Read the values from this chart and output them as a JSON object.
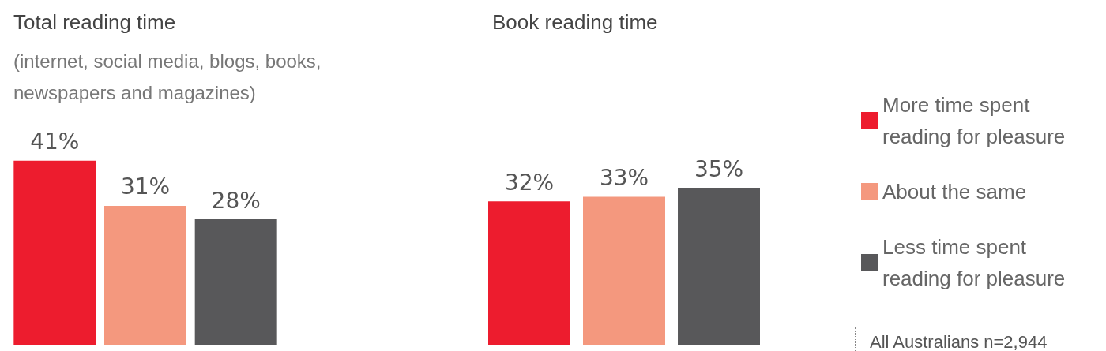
{
  "chart_data": [
    {
      "type": "bar",
      "title": "Total reading time",
      "subtitle": "(internet, social media, blogs, books, newspapers and magazines)",
      "categories": [
        null,
        null,
        null
      ],
      "values": [
        41,
        31,
        28
      ],
      "value_labels": [
        "41%",
        "31%",
        "28%"
      ],
      "colors": [
        "#ed1c2e",
        "#f4987e",
        "#58585a"
      ],
      "legend": false
    },
    {
      "type": "bar",
      "title": "Book reading time",
      "categories": [
        null
      ],
      "series": [
        {
          "name": "More time spent reading for pleasure",
          "color": "#ed1c2e",
          "values": [
            32
          ],
          "value_labels": [
            "32%"
          ]
        },
        {
          "name": "About the same",
          "color": "#f4987e",
          "values": [
            33
          ],
          "value_labels": [
            "33%"
          ]
        },
        {
          "name": "Less time spent reading for pleasure",
          "color": "#58585a",
          "values": [
            35
          ],
          "value_labels": [
            "35%"
          ]
        }
      ],
      "legend": "right",
      "annotations": [
        "All Australians n=2,944"
      ]
    }
  ]
}
